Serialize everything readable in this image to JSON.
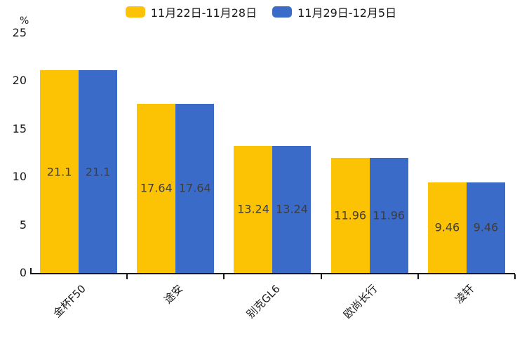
{
  "chart_data": {
    "type": "bar",
    "title": "",
    "xlabel": "",
    "ylabel": "%",
    "categories": [
      "金杯F50",
      "途安",
      "别克GL6",
      "欧尚长行",
      "凌轩"
    ],
    "series": [
      {
        "name": "11月22日-11月28日",
        "color": "#FBC303",
        "values": [
          21.1,
          17.64,
          13.24,
          11.96,
          9.46
        ]
      },
      {
        "name": "11月29日-12月5日",
        "color": "#3A6BC9",
        "values": [
          21.1,
          17.64,
          13.24,
          11.96,
          9.46
        ]
      }
    ],
    "ylim": [
      0,
      25
    ],
    "yticks": [
      0,
      5,
      10,
      15,
      20,
      25
    ],
    "grid": false,
    "legend_position": "top-center",
    "value_labels": "inside-center",
    "value_label_color": "#3d3d3d",
    "axis_color": "#161616",
    "category_label_rotation_deg": 45
  }
}
